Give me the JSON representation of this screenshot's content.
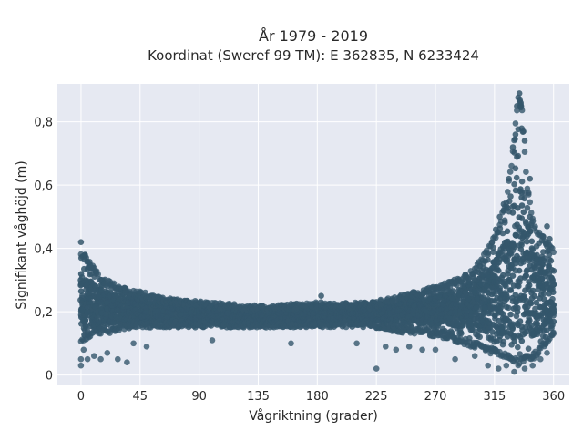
{
  "chart_data": {
    "type": "scatter",
    "title": "År 1979 - 2019",
    "subtitle": "Koordinat (Sweref 99 TM): E 362835, N 6233424",
    "xlabel": "Vågriktning (grader)",
    "ylabel": "Signifikant våghöjd (m)",
    "xlim": [
      -18,
      372
    ],
    "ylim": [
      -0.03,
      0.92
    ],
    "x_ticks": [
      0,
      45,
      90,
      135,
      180,
      225,
      270,
      315,
      360
    ],
    "x_tick_labels": [
      "0",
      "45",
      "90",
      "135",
      "180",
      "225",
      "270",
      "315",
      "360"
    ],
    "y_ticks": [
      0,
      0.2,
      0.4,
      0.6,
      0.8
    ],
    "y_tick_labels": [
      "0",
      "0,2",
      "0,4",
      "0,6",
      "0,8"
    ],
    "grid": true,
    "series": [
      {
        "color": "#34566b",
        "band_lower": [
          [
            0,
            0.1
          ],
          [
            10,
            0.13
          ],
          [
            20,
            0.13
          ],
          [
            40,
            0.15
          ],
          [
            60,
            0.15
          ],
          [
            90,
            0.15
          ],
          [
            135,
            0.15
          ],
          [
            180,
            0.15
          ],
          [
            220,
            0.15
          ],
          [
            250,
            0.13
          ],
          [
            270,
            0.12
          ],
          [
            290,
            0.1
          ],
          [
            310,
            0.07
          ],
          [
            325,
            0.05
          ],
          [
            333,
            0.03
          ],
          [
            345,
            0.05
          ],
          [
            355,
            0.1
          ],
          [
            360,
            0.12
          ]
        ],
        "band_upper": [
          [
            0,
            0.4
          ],
          [
            5,
            0.37
          ],
          [
            15,
            0.31
          ],
          [
            30,
            0.28
          ],
          [
            50,
            0.26
          ],
          [
            70,
            0.24
          ],
          [
            100,
            0.23
          ],
          [
            135,
            0.22
          ],
          [
            180,
            0.23
          ],
          [
            220,
            0.23
          ],
          [
            250,
            0.26
          ],
          [
            270,
            0.28
          ],
          [
            290,
            0.31
          ],
          [
            300,
            0.34
          ],
          [
            310,
            0.4
          ],
          [
            318,
            0.47
          ],
          [
            324,
            0.56
          ],
          [
            328,
            0.68
          ],
          [
            331,
            0.8
          ],
          [
            333,
            0.89
          ],
          [
            336,
            0.84
          ],
          [
            340,
            0.6
          ],
          [
            345,
            0.48
          ],
          [
            352,
            0.44
          ],
          [
            360,
            0.4
          ]
        ],
        "dense_lower": [
          [
            0,
            0.15
          ],
          [
            20,
            0.16
          ],
          [
            60,
            0.17
          ],
          [
            135,
            0.17
          ],
          [
            220,
            0.17
          ],
          [
            270,
            0.16
          ],
          [
            300,
            0.15
          ],
          [
            320,
            0.12
          ],
          [
            333,
            0.1
          ],
          [
            345,
            0.12
          ],
          [
            360,
            0.15
          ]
        ],
        "dense_upper": [
          [
            0,
            0.32
          ],
          [
            15,
            0.27
          ],
          [
            40,
            0.24
          ],
          [
            90,
            0.21
          ],
          [
            180,
            0.21
          ],
          [
            250,
            0.23
          ],
          [
            280,
            0.26
          ],
          [
            300,
            0.3
          ],
          [
            315,
            0.36
          ],
          [
            325,
            0.45
          ],
          [
            330,
            0.56
          ],
          [
            333,
            0.62
          ],
          [
            337,
            0.55
          ],
          [
            345,
            0.4
          ],
          [
            360,
            0.33
          ]
        ],
        "extra_low_points": [
          [
            0,
            0.03
          ],
          [
            0,
            0.05
          ],
          [
            2,
            0.08
          ],
          [
            5,
            0.05
          ],
          [
            10,
            0.06
          ],
          [
            15,
            0.05
          ],
          [
            20,
            0.07
          ],
          [
            28,
            0.05
          ],
          [
            35,
            0.04
          ],
          [
            40,
            0.1
          ],
          [
            50,
            0.09
          ],
          [
            100,
            0.11
          ],
          [
            160,
            0.1
          ],
          [
            210,
            0.1
          ],
          [
            225,
            0.02
          ],
          [
            232,
            0.09
          ],
          [
            240,
            0.08
          ],
          [
            250,
            0.09
          ],
          [
            260,
            0.08
          ],
          [
            270,
            0.08
          ],
          [
            285,
            0.05
          ],
          [
            300,
            0.06
          ],
          [
            310,
            0.03
          ],
          [
            318,
            0.02
          ],
          [
            324,
            0.03
          ],
          [
            330,
            0.01
          ],
          [
            338,
            0.02
          ],
          [
            344,
            0.03
          ],
          [
            350,
            0.05
          ],
          [
            355,
            0.07
          ]
        ],
        "extra_high_points": [
          [
            0,
            0.42
          ],
          [
            3,
            0.38
          ],
          [
            183,
            0.25
          ],
          [
            300,
            0.3
          ],
          [
            305,
            0.33
          ],
          [
            308,
            0.36
          ],
          [
            310,
            0.38
          ],
          [
            313,
            0.42
          ],
          [
            316,
            0.46
          ],
          [
            319,
            0.5
          ],
          [
            322,
            0.54
          ],
          [
            326,
            0.62
          ],
          [
            329,
            0.72
          ],
          [
            331,
            0.76
          ],
          [
            332,
            0.85
          ],
          [
            334,
            0.89
          ],
          [
            335,
            0.86
          ],
          [
            338,
            0.74
          ],
          [
            342,
            0.62
          ],
          [
            355,
            0.47
          ],
          [
            357,
            0.43
          ]
        ]
      }
    ]
  }
}
